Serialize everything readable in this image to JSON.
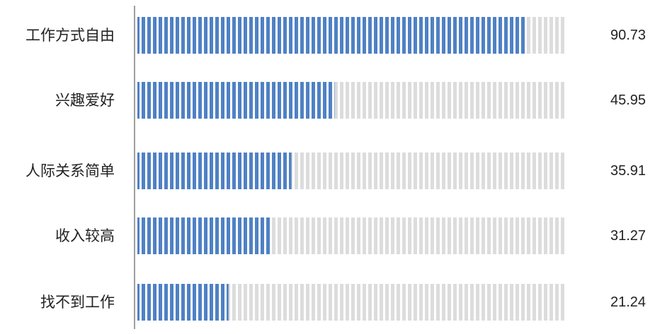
{
  "chart_data": {
    "type": "bar",
    "orientation": "horizontal",
    "categories": [
      "工作方式自由",
      "兴趣爱好",
      "人际关系简单",
      "收入较高",
      "找不到工作"
    ],
    "values": [
      90.73,
      45.95,
      35.91,
      31.27,
      21.24
    ],
    "value_labels": [
      "90.73",
      "45.95",
      "35.91",
      "31.27",
      "21.24"
    ],
    "xlim": [
      0,
      100
    ],
    "grid": false,
    "legend": "none",
    "colors": {
      "fill": "#4f81c4",
      "track": "#d9d9d9",
      "axis": "#7f7f7f"
    }
  }
}
